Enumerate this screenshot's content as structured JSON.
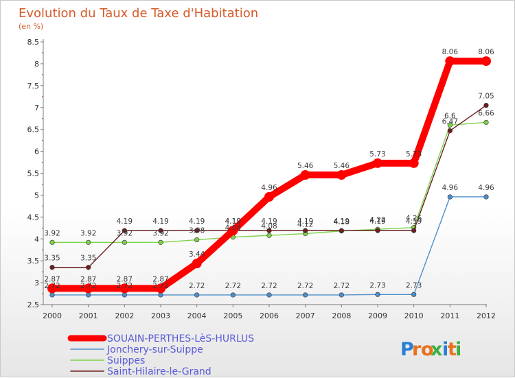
{
  "chart_data": {
    "type": "line",
    "title": "Evolution du Taux de Taxe d'Habitation",
    "subtitle": "(en %)",
    "xlabel": "",
    "ylabel": "(en %)",
    "ylim": [
      2.5,
      8.5
    ],
    "yticks": [
      "2.5",
      "3",
      "3.5",
      "4",
      "4.5",
      "5",
      "5.5",
      "6",
      "6.5",
      "7",
      "7.5",
      "8",
      "8.5"
    ],
    "grid": false,
    "legend_position": "bottom-left",
    "categories": [
      "2000",
      "2001",
      "2002",
      "2003",
      "2004",
      "2005",
      "2006",
      "2007",
      "2008",
      "2009",
      "2010",
      "2011",
      "2012"
    ],
    "series": [
      {
        "name": "SOUAIN-PERTHES-LèS-HURLUS",
        "color": "#ff0000",
        "labels_above": true,
        "values": [
          2.87,
          2.87,
          2.87,
          2.87,
          3.44,
          4.19,
          4.96,
          5.46,
          5.46,
          5.73,
          5.73,
          8.06,
          8.06
        ]
      },
      {
        "name": "Jonchery-sur-Suippe",
        "color": "#4f8fc9",
        "labels_above": true,
        "values": [
          2.72,
          2.72,
          2.72,
          2.72,
          2.72,
          2.72,
          2.72,
          2.72,
          2.72,
          2.73,
          2.73,
          4.96,
          4.96
        ]
      },
      {
        "name": "Suippes",
        "color": "#7dd24a",
        "labels_above": true,
        "values": [
          3.92,
          3.92,
          3.92,
          3.92,
          3.98,
          4.04,
          4.08,
          4.12,
          4.18,
          4.22,
          4.26,
          6.6,
          6.66
        ]
      },
      {
        "name": "Saint-Hilaire-le-Grand",
        "color": "#6b1f1f",
        "labels_above": true,
        "values": [
          3.35,
          3.35,
          4.19,
          4.19,
          4.19,
          4.19,
          4.19,
          4.19,
          4.19,
          4.19,
          4.19,
          6.47,
          7.05
        ]
      }
    ]
  },
  "logo": {
    "text": "Proxiti",
    "colors": [
      "#2a7fd4",
      "#e9711c",
      "#e9711c",
      "#3cb043",
      "#2a7fd4",
      "#e9711c",
      "#3cb043"
    ]
  }
}
